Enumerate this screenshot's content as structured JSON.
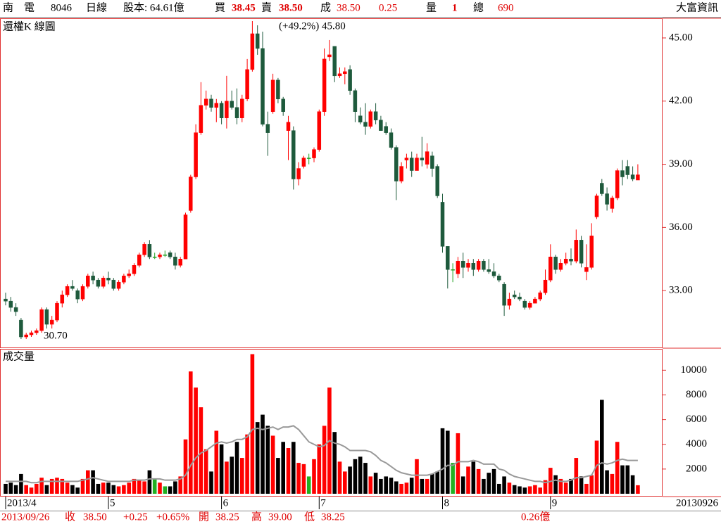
{
  "header": {
    "name": "南　電",
    "code": "8046",
    "period": "日線",
    "capital": "股本: 64.61億",
    "bid_label": "買",
    "bid": "38.45",
    "ask_label": "賣",
    "ask": "38.50",
    "deal_label": "成",
    "deal": "38.50",
    "change": "0.25",
    "qty_label": "量",
    "qty": "1",
    "total_label": "總",
    "total": "690",
    "vendor": "大富資訊"
  },
  "status": {
    "date": "2013/09/26",
    "close_label": "收",
    "close": "38.50",
    "change": "+0.25",
    "pct": "+0.65%",
    "open_label": "開",
    "open": "38.25",
    "high_label": "高",
    "high": "39.00",
    "low_label": "低",
    "low": "38.25",
    "amount": "0.26億"
  },
  "chart_data": [
    {
      "type": "candlestick",
      "title": "還權K 線圖",
      "annotations": [
        "(+49.2%) 45.80",
        "30.70"
      ],
      "colors": {
        "up": "#ff0000",
        "down": "#1e5a3c",
        "flat": "#22a022",
        "border": "#e03030"
      },
      "ylim": [
        30.3,
        45.9
      ],
      "yticks": [
        {
          "value": 33,
          "label": "33.00"
        },
        {
          "value": 36,
          "label": "36.00"
        },
        {
          "value": 39,
          "label": "39.00"
        },
        {
          "value": 42,
          "label": "42.00"
        },
        {
          "value": 45,
          "label": "45.00"
        }
      ],
      "xticks": [
        {
          "value": 0,
          "label": "2013/4"
        },
        {
          "value": 20,
          "label": "5"
        },
        {
          "value": 42,
          "label": "6"
        },
        {
          "value": 61,
          "label": "7"
        },
        {
          "value": 85,
          "label": "8"
        },
        {
          "value": 106,
          "label": "9"
        }
      ],
      "last_date": "20130926",
      "ohlc": [
        [
          32.6,
          32.9,
          32.3,
          32.5
        ],
        [
          32.5,
          32.7,
          32.0,
          32.2
        ],
        [
          32.2,
          32.4,
          31.8,
          32.0
        ],
        [
          31.6,
          31.7,
          30.7,
          30.8
        ],
        [
          30.8,
          31.0,
          30.7,
          30.9
        ],
        [
          30.9,
          31.1,
          30.8,
          31.0
        ],
        [
          31.0,
          31.2,
          30.9,
          31.1
        ],
        [
          31.1,
          32.2,
          31.0,
          32.1
        ],
        [
          32.1,
          32.2,
          31.2,
          31.4
        ],
        [
          31.4,
          31.8,
          31.2,
          31.6
        ],
        [
          31.6,
          32.5,
          31.5,
          32.4
        ],
        [
          32.4,
          33.0,
          32.2,
          32.8
        ],
        [
          32.8,
          33.3,
          32.7,
          33.2
        ],
        [
          33.2,
          33.5,
          33.0,
          33.1
        ],
        [
          33.0,
          33.1,
          32.4,
          32.6
        ],
        [
          32.6,
          33.3,
          32.5,
          33.2
        ],
        [
          33.2,
          33.8,
          33.1,
          33.7
        ],
        [
          33.7,
          33.9,
          33.3,
          33.5
        ],
        [
          33.5,
          33.6,
          33.1,
          33.2
        ],
        [
          33.2,
          33.7,
          33.1,
          33.6
        ],
        [
          33.6,
          33.9,
          33.3,
          33.5
        ],
        [
          33.5,
          33.6,
          33.0,
          33.1
        ],
        [
          33.1,
          33.5,
          33.0,
          33.4
        ],
        [
          33.4,
          33.8,
          33.3,
          33.7
        ],
        [
          33.7,
          34.0,
          33.6,
          33.8
        ],
        [
          33.8,
          34.3,
          33.7,
          34.2
        ],
        [
          34.2,
          34.8,
          34.1,
          34.7
        ],
        [
          34.7,
          35.3,
          34.6,
          35.2
        ],
        [
          35.2,
          35.4,
          34.5,
          34.6
        ],
        [
          34.6,
          34.8,
          34.5,
          34.6
        ],
        [
          34.6,
          34.8,
          34.5,
          34.7
        ],
        [
          34.7,
          34.9,
          34.6,
          34.7
        ],
        [
          34.8,
          34.9,
          34.5,
          34.6
        ],
        [
          34.6,
          34.8,
          34.0,
          34.2
        ],
        [
          34.2,
          34.6,
          34.1,
          34.5
        ],
        [
          34.5,
          36.7,
          34.5,
          36.6
        ],
        [
          36.8,
          38.5,
          36.7,
          38.4
        ],
        [
          38.4,
          40.9,
          38.3,
          40.5
        ],
        [
          40.5,
          42.9,
          40.4,
          41.8
        ],
        [
          41.8,
          42.5,
          41.6,
          42.1
        ],
        [
          42.1,
          42.3,
          41.5,
          41.7
        ],
        [
          41.7,
          42.1,
          41.0,
          41.9
        ],
        [
          41.9,
          42.0,
          40.9,
          41.2
        ],
        [
          41.2,
          43.2,
          40.7,
          42.0
        ],
        [
          42.0,
          42.5,
          41.6,
          41.7
        ],
        [
          41.7,
          42.6,
          40.9,
          41.2
        ],
        [
          41.2,
          42.3,
          41.0,
          42.1
        ],
        [
          42.1,
          44.0,
          42.0,
          43.5
        ],
        [
          43.5,
          45.8,
          43.4,
          45.2
        ],
        [
          45.2,
          45.6,
          44.2,
          44.5
        ],
        [
          44.5,
          45.3,
          40.8,
          40.9
        ],
        [
          40.9,
          41.5,
          39.4,
          40.5
        ],
        [
          41.5,
          43.3,
          41.4,
          43.0
        ],
        [
          43.0,
          43.1,
          41.9,
          42.1
        ],
        [
          42.1,
          42.2,
          41.3,
          41.5
        ],
        [
          40.6,
          41.3,
          39.2,
          41.0
        ],
        [
          40.6,
          40.8,
          37.8,
          38.3
        ],
        [
          38.3,
          39.1,
          38.0,
          38.8
        ],
        [
          38.9,
          39.4,
          38.8,
          39.3
        ],
        [
          39.3,
          39.5,
          39.0,
          39.3
        ],
        [
          39.3,
          39.8,
          39.1,
          39.7
        ],
        [
          39.7,
          41.6,
          39.6,
          41.5
        ],
        [
          41.5,
          44.5,
          41.3,
          44.0
        ],
        [
          44.1,
          44.9,
          43.9,
          44.2
        ],
        [
          44.6,
          44.6,
          42.9,
          43.2
        ],
        [
          43.2,
          43.6,
          43.1,
          43.3
        ],
        [
          43.3,
          43.6,
          42.8,
          43.4
        ],
        [
          43.5,
          43.7,
          42.3,
          42.5
        ],
        [
          42.5,
          42.6,
          41.0,
          41.5
        ],
        [
          41.3,
          41.7,
          40.9,
          41.0
        ],
        [
          41.0,
          41.9,
          40.4,
          40.8
        ],
        [
          40.8,
          41.6,
          40.7,
          41.5
        ],
        [
          41.5,
          41.9,
          40.9,
          41.1
        ],
        [
          41.1,
          41.3,
          40.6,
          40.6
        ],
        [
          40.8,
          41.0,
          40.4,
          40.5
        ],
        [
          40.5,
          40.7,
          39.7,
          39.8
        ],
        [
          39.8,
          39.9,
          37.3,
          38.2
        ],
        [
          38.2,
          39.1,
          38.1,
          38.9
        ],
        [
          39.2,
          39.5,
          38.8,
          39.3
        ],
        [
          39.3,
          39.6,
          38.4,
          38.7
        ],
        [
          38.7,
          39.5,
          38.7,
          39.3
        ],
        [
          39.3,
          40.3,
          38.9,
          39.2
        ],
        [
          39.0,
          40.0,
          38.8,
          39.6
        ],
        [
          39.4,
          39.6,
          38.4,
          38.8
        ],
        [
          38.9,
          39.0,
          37.4,
          37.5
        ],
        [
          37.2,
          37.6,
          34.8,
          35.1
        ],
        [
          35.1,
          35.1,
          33.1,
          34.0
        ],
        [
          34.0,
          34.3,
          33.4,
          34.0
        ],
        [
          33.8,
          34.6,
          33.6,
          34.4
        ],
        [
          34.4,
          34.8,
          33.6,
          34.1
        ],
        [
          34.1,
          34.5,
          33.9,
          34.3
        ],
        [
          34.3,
          34.5,
          33.7,
          34.0
        ],
        [
          34.0,
          34.5,
          33.9,
          34.4
        ],
        [
          34.4,
          34.5,
          33.9,
          34.0
        ],
        [
          34.0,
          34.5,
          33.8,
          33.9
        ],
        [
          33.9,
          34.3,
          33.6,
          33.7
        ],
        [
          33.7,
          33.8,
          33.4,
          33.5
        ],
        [
          33.3,
          33.4,
          31.8,
          32.3
        ],
        [
          32.3,
          32.9,
          32.1,
          32.6
        ],
        [
          32.8,
          33.0,
          32.6,
          32.7
        ],
        [
          32.7,
          32.9,
          32.5,
          32.6
        ],
        [
          32.5,
          32.6,
          32.1,
          32.2
        ],
        [
          32.2,
          32.5,
          32.1,
          32.4
        ],
        [
          32.4,
          32.7,
          32.4,
          32.6
        ],
        [
          32.6,
          33.0,
          32.5,
          32.9
        ],
        [
          32.9,
          34.0,
          32.8,
          33.5
        ],
        [
          33.5,
          35.2,
          33.4,
          34.6
        ],
        [
          34.6,
          34.7,
          33.8,
          34.0
        ],
        [
          34.0,
          34.5,
          33.9,
          34.3
        ],
        [
          34.3,
          34.8,
          34.2,
          34.5
        ],
        [
          34.5,
          35.0,
          34.2,
          34.4
        ],
        [
          34.4,
          35.9,
          34.3,
          35.4
        ],
        [
          35.4,
          35.6,
          34.1,
          34.3
        ],
        [
          33.9,
          35.2,
          33.5,
          34.1
        ],
        [
          34.1,
          36.2,
          34.0,
          35.6
        ],
        [
          36.5,
          37.6,
          36.4,
          37.5
        ],
        [
          38.1,
          38.3,
          37.5,
          37.6
        ],
        [
          37.6,
          37.9,
          36.8,
          37.1
        ],
        [
          36.9,
          37.5,
          36.7,
          37.4
        ],
        [
          37.4,
          38.8,
          37.3,
          38.7
        ],
        [
          38.7,
          39.2,
          38.0,
          38.4
        ],
        [
          38.9,
          39.2,
          38.3,
          38.5
        ],
        [
          38.5,
          38.9,
          38.2,
          38.3
        ],
        [
          38.25,
          39.0,
          38.25,
          38.5
        ]
      ]
    },
    {
      "type": "bar",
      "title": "成交量",
      "ylim": [
        0,
        11500
      ],
      "yticks": [
        2000,
        4000,
        6000,
        8000,
        10000
      ],
      "colors": {
        "up": "#ff0000",
        "down": "#000000",
        "flat": "#22b022",
        "ma": "#999999"
      },
      "values": [
        800,
        900,
        700,
        1600,
        700,
        500,
        800,
        1300,
        700,
        1200,
        1300,
        1200,
        900,
        700,
        500,
        1200,
        1900,
        1900,
        800,
        900,
        900,
        700,
        600,
        700,
        900,
        1200,
        1100,
        1000,
        1900,
        1200,
        900,
        600,
        600,
        1000,
        1400,
        4400,
        9900,
        8600,
        7000,
        3600,
        1800,
        5100,
        4000,
        2600,
        3000,
        4200,
        2900,
        4800,
        11300,
        5800,
        6400,
        5500,
        4700,
        2900,
        4200,
        3700,
        4200,
        2500,
        2400,
        1400,
        2800,
        4000,
        5500,
        8600,
        5000,
        2600,
        1800,
        2200,
        2800,
        3000,
        2500,
        1400,
        1700,
        1200,
        1400,
        1300,
        1000,
        800,
        900,
        1300,
        2800,
        1200,
        1200,
        1600,
        1800,
        5300,
        5100,
        2500,
        4900,
        1400,
        2200,
        2600,
        2000,
        1200,
        1700,
        2000,
        800,
        1400,
        900,
        700,
        600,
        500,
        600,
        700,
        500,
        1100,
        2100,
        1500,
        1200,
        900,
        1200,
        2900,
        1400,
        800,
        1500,
        4300,
        7600,
        1900,
        1600,
        4200,
        2300,
        2300,
        1500,
        690
      ],
      "ma": [
        1000,
        1000,
        1000,
        1000,
        1000,
        900,
        900,
        1000,
        1000,
        1000,
        1000,
        1000,
        1000,
        1000,
        1000,
        1100,
        1200,
        1300,
        1200,
        1100,
        1000,
        1000,
        1000,
        1000,
        1000,
        1100,
        1100,
        1100,
        1200,
        1200,
        1200,
        1100,
        1100,
        1100,
        1200,
        1500,
        2300,
        2900,
        3300,
        3500,
        3800,
        4100,
        4200,
        4100,
        4200,
        4400,
        4400,
        4600,
        5200,
        5300,
        5200,
        5300,
        5400,
        5200,
        5400,
        5400,
        5500,
        5200,
        4700,
        4200,
        4000,
        3800,
        3900,
        4300,
        4100,
        4000,
        3800,
        3500,
        3500,
        3500,
        3500,
        3400,
        3100,
        2700,
        2500,
        2200,
        1900,
        1700,
        1600,
        1500,
        1500,
        1500,
        1500,
        1600,
        1800,
        2000,
        2300,
        2300,
        2600,
        2600,
        2600,
        2700,
        2600,
        2400,
        2400,
        2400,
        2000,
        1900,
        1600,
        1400,
        1300,
        1200,
        1100,
        1000,
        1000,
        900,
        1000,
        1100,
        1000,
        1000,
        1100,
        1300,
        1300,
        1400,
        1500,
        2300,
        2500,
        2400,
        2500,
        2700,
        2800,
        2700,
        2700,
        2700
      ]
    }
  ]
}
